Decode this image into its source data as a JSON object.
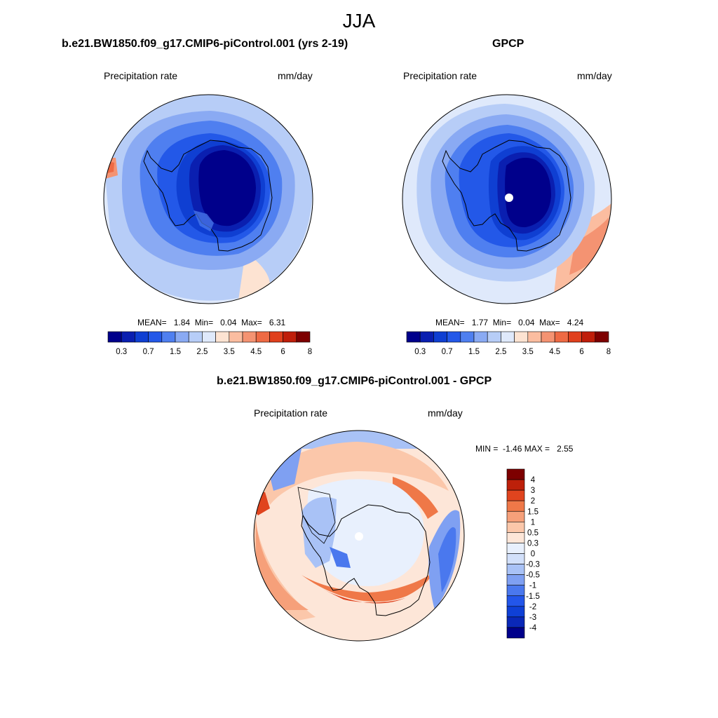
{
  "figure_title": "JJA",
  "colors": {
    "abs_levels": [
      "#00008b",
      "#0a1fb0",
      "#0f3fd2",
      "#2358e8",
      "#4f7ff0",
      "#8aaaf3",
      "#b7cdf7",
      "#dfe9fb",
      "#fde3d2",
      "#fbbda0",
      "#f49372",
      "#ee6a44",
      "#e0401d",
      "#bf1e0a",
      "#7d0000"
    ],
    "diff_levels": [
      "#00008b",
      "#0a28b8",
      "#0f40d6",
      "#2356ea",
      "#4a78ee",
      "#7fa0f2",
      "#a9c2f6",
      "#d2e0fa",
      "#e8f0fd",
      "#fde6d8",
      "#fbc7aa",
      "#f6a07a",
      "#ef7848",
      "#e0441e",
      "#bd200a",
      "#7d0000"
    ]
  },
  "panels": {
    "model": {
      "title": "b.e21.BW1850.f09_g17.CMIP6-piControl.001 (yrs 2-19)",
      "variable": "Precipitation rate",
      "units": "mm/day",
      "mean_label": "MEAN=",
      "mean": "1.84",
      "min_label": "Min=",
      "min": "0.04",
      "max_label": "Max=",
      "max": "6.31"
    },
    "obs": {
      "title": "GPCP",
      "variable": "Precipitation rate",
      "units": "mm/day",
      "mean_label": "MEAN=",
      "mean": "1.77",
      "min_label": "Min=",
      "min": "0.04",
      "max_label": "Max=",
      "max": "4.24"
    },
    "diff": {
      "title": "b.e21.BW1850.f09_g17.CMIP6-piControl.001 - GPCP",
      "variable": "Precipitation rate",
      "units": "mm/day",
      "min_label": "MIN =",
      "min": "-1.46",
      "max_label": "MAX =",
      "max": "2.55"
    }
  },
  "abs_colorbar_ticks": [
    "0.3",
    "0.7",
    "1.5",
    "2.5",
    "3.5",
    "4.5",
    "6",
    "8"
  ],
  "diff_colorbar_ticks": [
    "4",
    "3",
    "2",
    "1.5",
    "1",
    "0.5",
    "0.3",
    "0",
    "-0.3",
    "-0.5",
    "-1",
    "-1.5",
    "-2",
    "-3",
    "-4"
  ]
}
